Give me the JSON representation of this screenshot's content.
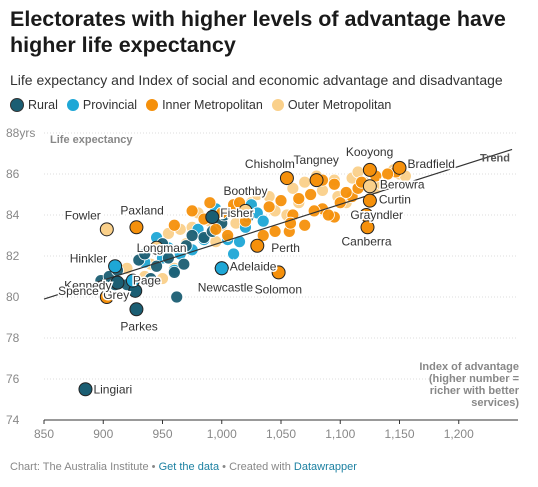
{
  "title": "Electorates with higher levels of advantage have higher life expectancy",
  "subtitle": "Life expectancy and Index of social and economic advantage and disadvantage",
  "legend": [
    {
      "label": "Rural",
      "color": "#1b5e73"
    },
    {
      "label": "Provincial",
      "color": "#1ea7d6"
    },
    {
      "label": "Inner Metropolitan",
      "color": "#f5900b"
    },
    {
      "label": "Outer Metropolitan",
      "color": "#fad08a"
    }
  ],
  "footer": {
    "source": "Chart: The Australia Institute",
    "sep1": " • ",
    "get_data": "Get the data",
    "sep2": " • Created with ",
    "tool": "Datawrapper"
  },
  "chart_data": {
    "type": "scatter",
    "ylabel": "Life expectancy",
    "xlabel": "Index of advantage (higher number = richer with better services)",
    "xlabel_lines": [
      "Index of advantage",
      "(higher number =",
      "richer with better",
      "services)"
    ],
    "xlim": [
      850,
      1250
    ],
    "ylim": [
      74,
      88
    ],
    "x_ticks": [
      850,
      900,
      950,
      1000,
      1050,
      1100,
      1150,
      1200
    ],
    "x_tick_labels": [
      "850",
      "900",
      "950",
      "1,000",
      "1,050",
      "1,100",
      "1,150",
      "1,200"
    ],
    "y_ticks": [
      74,
      76,
      78,
      80,
      82,
      84,
      86,
      88
    ],
    "y_tick_labels": [
      "74",
      "76",
      "78",
      "80",
      "82",
      "84",
      "86",
      "88yrs"
    ],
    "trend": {
      "label": "Trend",
      "start": [
        850,
        79.9
      ],
      "end": [
        1245,
        87.2
      ]
    },
    "colors": {
      "Rural": "#1b5e73",
      "Provincial": "#1ea7d6",
      "Inner Metropolitan": "#f5900b",
      "Outer Metropolitan": "#fad08a"
    },
    "series": [
      {
        "name": "Rural",
        "points": [
          [
            885,
            75.5
          ],
          [
            928,
            79.4
          ],
          [
            927,
            80.3
          ],
          [
            962,
            80.0
          ],
          [
            898,
            80.8
          ],
          [
            905,
            81.0
          ],
          [
            912,
            81.3
          ],
          [
            930,
            81.8
          ],
          [
            935,
            82.1
          ],
          [
            945,
            81.5
          ],
          [
            955,
            81.9
          ],
          [
            960,
            81.2
          ],
          [
            970,
            82.5
          ],
          [
            985,
            82.9
          ],
          [
            992,
            83.2
          ],
          [
            1000,
            83.6
          ],
          [
            910,
            80.6
          ],
          [
            950,
            82.6
          ],
          [
            975,
            83.0
          ],
          [
            1022,
            83.9
          ],
          [
            1002,
            84.0
          ],
          [
            940,
            80.9
          ],
          [
            920,
            80.6
          ],
          [
            968,
            81.6
          ],
          [
            1015,
            84.2
          ]
        ]
      },
      {
        "name": "Provincial",
        "points": [
          [
            910,
            81.5
          ],
          [
            925,
            80.8
          ],
          [
            935,
            81.7
          ],
          [
            950,
            81.9
          ],
          [
            960,
            81.3
          ],
          [
            1000,
            81.4
          ],
          [
            965,
            82.1
          ],
          [
            975,
            82.3
          ],
          [
            985,
            82.8
          ],
          [
            1005,
            82.8
          ],
          [
            1010,
            82.1
          ],
          [
            1020,
            83.4
          ],
          [
            1025,
            84.5
          ],
          [
            1030,
            84.1
          ],
          [
            955,
            82.4
          ],
          [
            980,
            83.3
          ],
          [
            1015,
            82.7
          ],
          [
            945,
            82.9
          ],
          [
            1035,
            83.7
          ],
          [
            995,
            84.3
          ]
        ]
      },
      {
        "name": "Inner Metropolitan",
        "points": [
          [
            903,
            80.0
          ],
          [
            1055,
            85.8
          ],
          [
            1080,
            85.7
          ],
          [
            1125,
            86.2
          ],
          [
            1150,
            86.3
          ],
          [
            1147,
            86.1
          ],
          [
            1125,
            85.4
          ],
          [
            1125,
            84.7
          ],
          [
            1122,
            84.0
          ],
          [
            1123,
            83.4
          ],
          [
            1057,
            83.2
          ],
          [
            1030,
            82.5
          ],
          [
            1048,
            81.2
          ],
          [
            990,
            84.6
          ],
          [
            1000,
            84.1
          ],
          [
            1010,
            84.5
          ],
          [
            1040,
            84.4
          ],
          [
            1060,
            84.0
          ],
          [
            1065,
            84.8
          ],
          [
            1075,
            85.0
          ],
          [
            1085,
            84.3
          ],
          [
            1095,
            83.9
          ],
          [
            1100,
            84.6
          ],
          [
            1110,
            84.9
          ],
          [
            1115,
            85.3
          ],
          [
            1095,
            85.5
          ],
          [
            1070,
            83.5
          ],
          [
            1045,
            83.2
          ],
          [
            1020,
            83.7
          ],
          [
            1005,
            83.0
          ],
          [
            960,
            83.5
          ],
          [
            975,
            84.2
          ],
          [
            985,
            83.8
          ],
          [
            1085,
            85.7
          ],
          [
            1050,
            84.7
          ],
          [
            1130,
            85.9
          ],
          [
            1140,
            86.0
          ],
          [
            1090,
            84.0
          ],
          [
            1035,
            83.0
          ],
          [
            1015,
            84.6
          ],
          [
            1105,
            85.1
          ],
          [
            1058,
            83.6
          ],
          [
            1078,
            84.2
          ],
          [
            995,
            83.3
          ],
          [
            1118,
            85.6
          ]
        ]
      },
      {
        "name": "Outer Metropolitan",
        "points": [
          [
            903,
            83.3
          ],
          [
            926,
            80.5
          ],
          [
            940,
            81.6
          ],
          [
            945,
            82.4
          ],
          [
            955,
            83.1
          ],
          [
            965,
            83.3
          ],
          [
            980,
            84.1
          ],
          [
            990,
            83.7
          ],
          [
            1010,
            84.3
          ],
          [
            1025,
            84.6
          ],
          [
            1040,
            84.9
          ],
          [
            1060,
            85.3
          ],
          [
            1070,
            85.6
          ],
          [
            1080,
            85.9
          ],
          [
            1095,
            85.7
          ],
          [
            1110,
            85.8
          ],
          [
            1120,
            85.6
          ],
          [
            1130,
            85.3
          ],
          [
            1145,
            86.2
          ],
          [
            1150,
            86.0
          ],
          [
            1155,
            85.9
          ],
          [
            1125,
            84.8
          ],
          [
            1105,
            84.6
          ],
          [
            1085,
            85.2
          ],
          [
            1065,
            84.6
          ],
          [
            1045,
            84.2
          ],
          [
            1020,
            83.9
          ],
          [
            1000,
            83.5
          ],
          [
            985,
            82.9
          ],
          [
            970,
            82.6
          ],
          [
            960,
            81.4
          ],
          [
            950,
            80.9
          ],
          [
            935,
            81.0
          ],
          [
            1030,
            85.0
          ],
          [
            1115,
            86.1
          ],
          [
            920,
            81.4
          ],
          [
            975,
            83.4
          ],
          [
            995,
            82.7
          ],
          [
            1055,
            84.0
          ],
          [
            1135,
            85.5
          ],
          [
            1098,
            84.9
          ],
          [
            1012,
            83.6
          ]
        ]
      }
    ],
    "annotations": [
      {
        "label": "Lingiari",
        "x": 885,
        "y": 75.5,
        "category": "Rural",
        "anchor": "start",
        "dx": 8,
        "dy": 4
      },
      {
        "label": "Parkes",
        "x": 928,
        "y": 79.4,
        "category": "Rural",
        "anchor": "start",
        "dx": -16,
        "dy": 21
      },
      {
        "label": "Grey",
        "x": 927,
        "y": 80.3,
        "category": "Rural",
        "anchor": "end",
        "dx": -6,
        "dy": 8
      },
      {
        "label": "Kennedy",
        "x": 912,
        "y": 80.7,
        "category": "Rural",
        "anchor": "end",
        "dx": -6,
        "dy": 7
      },
      {
        "label": "Spence",
        "x": 903,
        "y": 80.0,
        "category": "Inner Metropolitan",
        "anchor": "end",
        "dx": -8,
        "dy": -2
      },
      {
        "label": "Page",
        "x": 925,
        "y": 80.8,
        "category": "Provincial",
        "anchor": "start",
        "dx": 0,
        "dy": 4
      },
      {
        "label": "Hinkler",
        "x": 910,
        "y": 81.5,
        "category": "Provincial",
        "anchor": "end",
        "dx": -8,
        "dy": -4
      },
      {
        "label": "Longman",
        "x": 945,
        "y": 82.4,
        "category": "Outer Metropolitan",
        "anchor": "start",
        "dx": -20,
        "dy": 4
      },
      {
        "label": "Fowler",
        "x": 903,
        "y": 83.3,
        "category": "Outer Metropolitan",
        "anchor": "end",
        "dx": -6,
        "dy": -10
      },
      {
        "label": "Paxland",
        "x": 928,
        "y": 83.4,
        "category": "Inner Metropolitan",
        "anchor": "start",
        "dx": -16,
        "dy": -13
      },
      {
        "label": "Fisher",
        "x": 992,
        "y": 83.9,
        "category": "Rural",
        "anchor": "start",
        "dx": 8,
        "dy": 0
      },
      {
        "label": "Boothby",
        "x": 1020,
        "y": 84.2,
        "category": "Outer Metropolitan",
        "anchor": "start",
        "dx": -22,
        "dy": -16
      },
      {
        "label": "Adelaide",
        "x": 1000,
        "y": 81.4,
        "category": "Provincial",
        "anchor": "start",
        "dx": 8,
        "dy": 2
      },
      {
        "label": "Newcastle",
        "x": 1000,
        "y": 81.4,
        "category": "Provincial",
        "anchor": "start",
        "dx": -24,
        "dy": 23
      },
      {
        "label": "Perth",
        "x": 1030,
        "y": 82.5,
        "category": "Inner Metropolitan",
        "anchor": "start",
        "dx": 14,
        "dy": 6
      },
      {
        "label": "Solomon",
        "x": 1048,
        "y": 81.2,
        "category": "Inner Metropolitan",
        "anchor": "start",
        "dx": -24,
        "dy": 21
      },
      {
        "label": "Chisholm",
        "x": 1055,
        "y": 85.8,
        "category": "Inner Metropolitan",
        "anchor": "end",
        "dx": 8,
        "dy": -10
      },
      {
        "label": "Tangney",
        "x": 1080,
        "y": 85.7,
        "category": "Inner Metropolitan",
        "anchor": "start",
        "dx": -23,
        "dy": -16
      },
      {
        "label": "Kooyong",
        "x": 1125,
        "y": 86.2,
        "category": "Inner Metropolitan",
        "anchor": "start",
        "dx": -24,
        "dy": -14
      },
      {
        "label": "Bradfield",
        "x": 1150,
        "y": 86.3,
        "category": "Inner Metropolitan",
        "anchor": "start",
        "dx": 8,
        "dy": 0
      },
      {
        "label": "Berowra",
        "x": 1125,
        "y": 85.4,
        "category": "Outer Metropolitan",
        "anchor": "start",
        "dx": 10,
        "dy": 2
      },
      {
        "label": "Curtin",
        "x": 1125,
        "y": 84.7,
        "category": "Inner Metropolitan",
        "anchor": "start",
        "dx": 9,
        "dy": 3
      },
      {
        "label": "Grayndler",
        "x": 1122,
        "y": 84.0,
        "category": "Inner Metropolitan",
        "anchor": "start",
        "dx": -16,
        "dy": 4
      },
      {
        "label": "Canberra",
        "x": 1123,
        "y": 83.4,
        "category": "Inner Metropolitan",
        "anchor": "start",
        "dx": -26,
        "dy": 18
      }
    ]
  }
}
